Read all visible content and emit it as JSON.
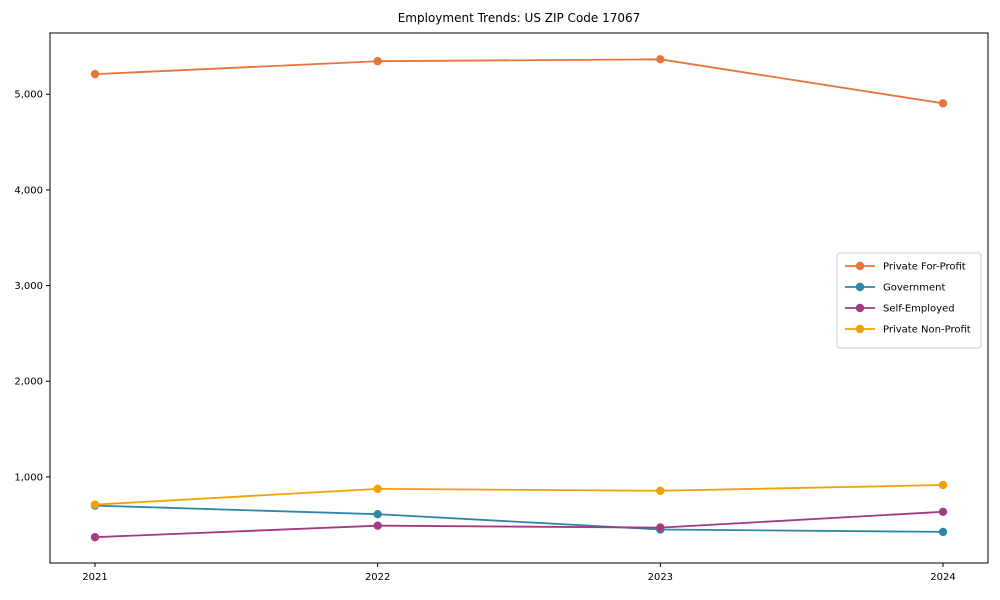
{
  "chart_data": {
    "type": "line",
    "title": "Employment Trends: US ZIP Code 17067",
    "xlabel": "",
    "ylabel": "",
    "x": [
      2021,
      2022,
      2023,
      2024
    ],
    "x_tick_labels": [
      "2021",
      "2022",
      "2023",
      "2024"
    ],
    "y_ticks": [
      1000,
      2000,
      3000,
      4000,
      5000
    ],
    "y_tick_labels": [
      "1,000",
      "2,000",
      "3,000",
      "4,000",
      "5,000"
    ],
    "ylim": [
      100,
      5640
    ],
    "grid": false,
    "legend_position": "center right",
    "marker": "circle",
    "series": [
      {
        "name": "Private For-Profit",
        "color": "#e8743b",
        "values": [
          5210,
          5345,
          5365,
          4905
        ]
      },
      {
        "name": "Government",
        "color": "#2e87a8",
        "values": [
          700,
          610,
          450,
          425
        ]
      },
      {
        "name": "Self-Employed",
        "color": "#a23b80",
        "values": [
          370,
          490,
          470,
          635
        ]
      },
      {
        "name": "Private Non-Profit",
        "color": "#f2a104",
        "values": [
          710,
          875,
          855,
          915
        ]
      }
    ]
  }
}
